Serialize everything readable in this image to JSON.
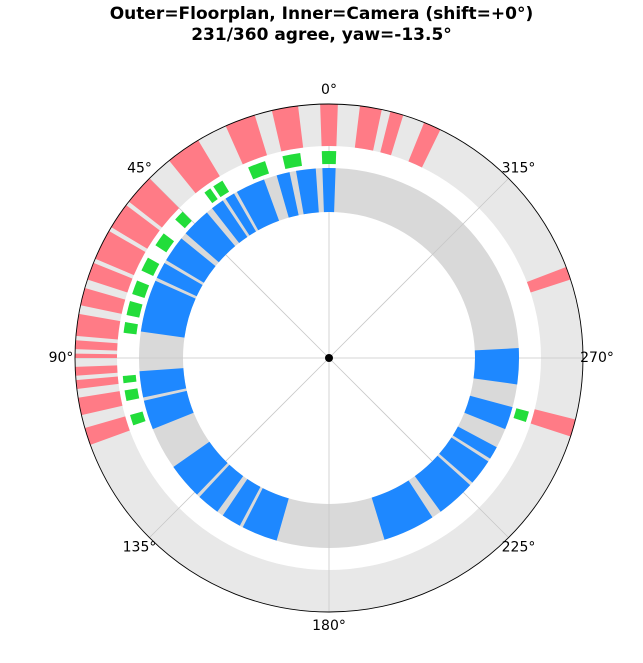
{
  "chart_data": {
    "type": "polar-bar",
    "title": "Outer=Floorplan, Inner=Camera (shift=+0°)",
    "subtitle": "231/360 agree, yaw=-13.5°",
    "angle_direction": "counterclockwise",
    "zero_location": "top",
    "tick_labels": [
      "0°",
      "45°",
      "90°",
      "135°",
      "180°",
      "225°",
      "270°",
      "315°"
    ],
    "tick_angles": [
      0,
      45,
      90,
      135,
      180,
      225,
      270,
      315
    ],
    "colors": {
      "outer_track": "#e8e8e8",
      "inner_track": "#d9d9d9",
      "floorplan": "#ff7b86",
      "camera": "#1e88ff",
      "agree": "#22dd3a",
      "grid": "#c8c8c8"
    },
    "series": [
      {
        "name": "Floorplan",
        "ring": "outer",
        "intervals": [
          [
            -2,
            2
          ],
          [
            7,
            13
          ],
          [
            17,
            24
          ],
          [
            31,
            39
          ],
          [
            45,
            52
          ],
          [
            53,
            59
          ],
          [
            60,
            67
          ],
          [
            68,
            72
          ],
          [
            74,
            78
          ],
          [
            80,
            85
          ],
          [
            86,
            88
          ],
          [
            89,
            90
          ],
          [
            92,
            94
          ],
          [
            95,
            97
          ],
          [
            99,
            103
          ],
          [
            106,
            110
          ],
          [
            -72,
            -69
          ],
          [
            -108,
            -104
          ],
          [
            -26,
            -22
          ],
          [
            -17,
            -14
          ],
          [
            -12,
            -7
          ]
        ]
      },
      {
        "name": "Camera",
        "ring": "inner",
        "intervals": [
          [
            -2,
            2
          ],
          [
            4,
            10
          ],
          [
            12,
            16
          ],
          [
            20,
            29
          ],
          [
            30,
            33
          ],
          [
            34,
            38
          ],
          [
            40,
            49
          ],
          [
            51,
            59
          ],
          [
            60,
            65
          ],
          [
            66,
            82
          ],
          [
            94,
            102
          ],
          [
            103,
            112
          ],
          [
            125,
            136
          ],
          [
            137,
            144
          ],
          [
            146,
            152
          ],
          [
            153,
            164
          ],
          [
            197,
            213
          ],
          [
            216,
            228
          ],
          [
            229,
            237
          ],
          [
            238,
            242
          ],
          [
            248,
            255
          ],
          [
            262,
            273
          ]
        ]
      },
      {
        "name": "Agree",
        "ring": "middle",
        "intervals": [
          [
            -2,
            2
          ],
          [
            8,
            13
          ],
          [
            18,
            23
          ],
          [
            31,
            34
          ],
          [
            35,
            37
          ],
          [
            45,
            48
          ],
          [
            53,
            57
          ],
          [
            61,
            65
          ],
          [
            68,
            72
          ],
          [
            74,
            78
          ],
          [
            80,
            83
          ],
          [
            95,
            97
          ],
          [
            99,
            102
          ],
          [
            106,
            109
          ],
          [
            -108,
            -105
          ]
        ]
      }
    ]
  }
}
